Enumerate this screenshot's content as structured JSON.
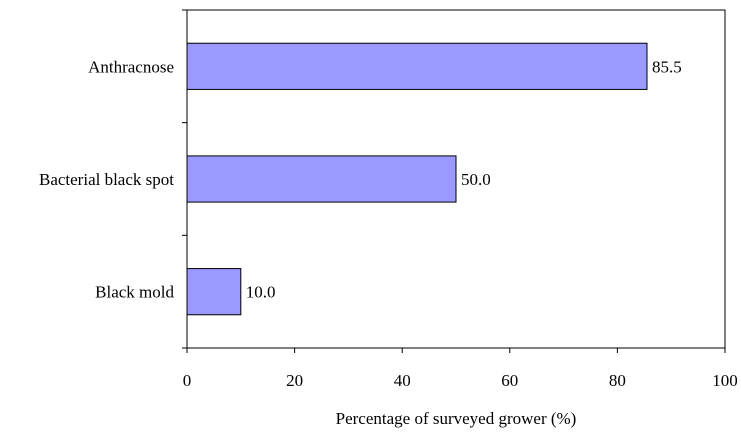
{
  "chart_data": {
    "type": "bar",
    "orientation": "horizontal",
    "categories": [
      "Anthracnose",
      "Bacterial black spot",
      "Black mold"
    ],
    "values": [
      85.5,
      50.0,
      10.0
    ],
    "value_labels": [
      "85.5",
      "50.0",
      "10.0"
    ],
    "title": "",
    "xlabel": "Percentage of surveyed grower (%)",
    "ylabel": "",
    "xlim": [
      0,
      100
    ],
    "xticks": [
      0,
      20,
      40,
      60,
      80,
      100
    ],
    "xtick_labels": [
      "0",
      "20",
      "40",
      "60",
      "80",
      "100"
    ],
    "grid": false,
    "legend": "none",
    "bar_color": "#9999ff",
    "bar_edge_color": "#000000"
  }
}
